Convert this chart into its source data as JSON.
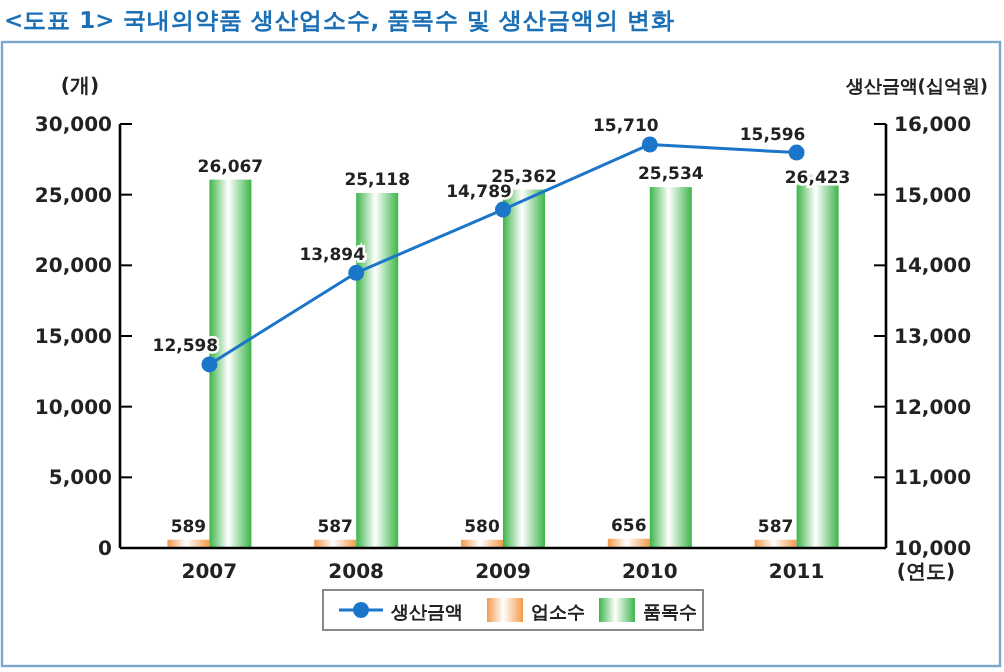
{
  "chart_data": {
    "type": "bar",
    "title": "<도표 1> 국내의약품 생산업소수, 품목수 및 생산금액의 변화",
    "categories": [
      "2007",
      "2008",
      "2009",
      "2010",
      "2011"
    ],
    "series": [
      {
        "name": "생산금액",
        "type": "line",
        "axis": "y2",
        "color": "#1b75c9",
        "values": [
          12598,
          13894,
          14789,
          15710,
          15596
        ],
        "value_labels": [
          "12,598",
          "13,894",
          "14,789",
          "15,710",
          "15,596"
        ]
      },
      {
        "name": "업소수",
        "color": "#f39a4a",
        "values": [
          589,
          587,
          580,
          656,
          587
        ],
        "value_labels": [
          "589",
          "587",
          "580",
          "656",
          "587"
        ]
      },
      {
        "name": "품목수",
        "color": "#3db54a",
        "values": [
          26067,
          25118,
          25362,
          25534,
          26423
        ],
        "value_labels": [
          "26,067",
          "25,118",
          "25,362",
          "25,534",
          "26,423"
        ]
      }
    ],
    "ylabel": "(개)",
    "y2label": "생산금액(십억원)",
    "xlabel": "(연도)",
    "ylim": [
      0,
      30000
    ],
    "yticks": [
      {
        "value": 0,
        "label": "0"
      },
      {
        "value": 5000,
        "label": "5,000"
      },
      {
        "value": 10000,
        "label": "10,000"
      },
      {
        "value": 15000,
        "label": "15,000"
      },
      {
        "value": 20000,
        "label": "20,000"
      },
      {
        "value": 25000,
        "label": "25,000"
      },
      {
        "value": 30000,
        "label": "30,000"
      }
    ],
    "y2lim": [
      10000,
      16000
    ],
    "y2ticks": [
      {
        "value": 10000,
        "label": "10,000"
      },
      {
        "value": 11000,
        "label": "11,000"
      },
      {
        "value": 12000,
        "label": "12,000"
      },
      {
        "value": 13000,
        "label": "13,000"
      },
      {
        "value": 14000,
        "label": "14,000"
      },
      {
        "value": 15000,
        "label": "15,000"
      },
      {
        "value": 16000,
        "label": "16,000"
      }
    ],
    "marker": "circle",
    "legend": "bottom",
    "grid": false
  }
}
